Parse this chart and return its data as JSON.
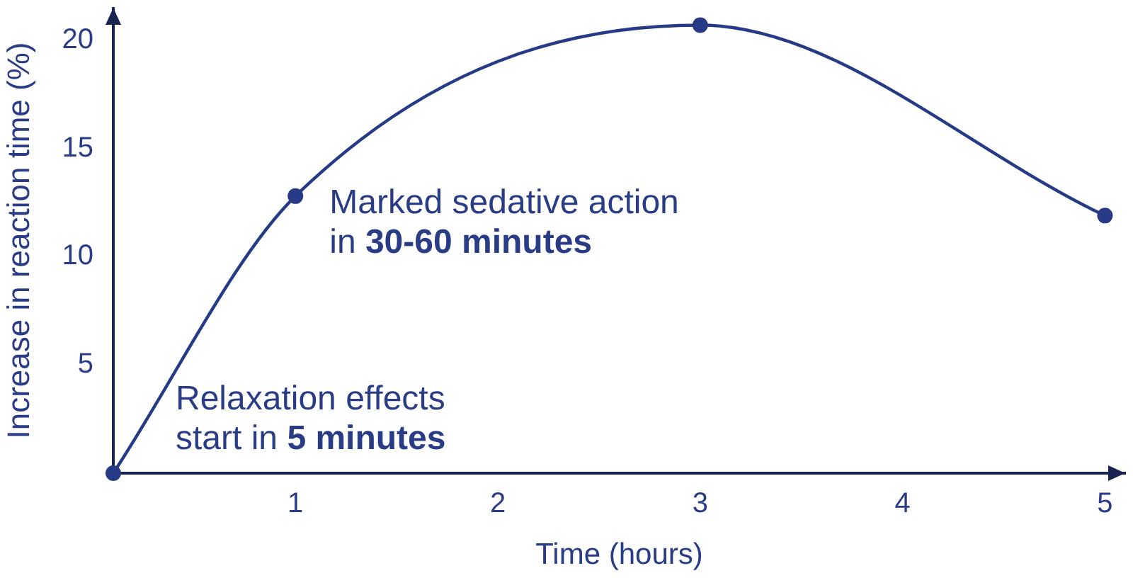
{
  "chart_data": {
    "type": "line",
    "xlabel": "Time (hours)",
    "ylabel": "Increase in reaction time (%)",
    "x": [
      0.1,
      1,
      3,
      5
    ],
    "series": [
      {
        "color": "#263a86",
        "values": [
          0,
          12.8,
          20.7,
          11.9
        ]
      }
    ],
    "xlim": [
      0.1,
      5.1
    ],
    "xticks": [
      1,
      2,
      3,
      4,
      5
    ],
    "ylim": [
      0,
      21.5
    ],
    "yticks": [
      5,
      10,
      15,
      20
    ],
    "grid": false,
    "legend": false,
    "marker": "circle",
    "line_style": "solid",
    "annotations": [
      {
        "text": "Marked sedative action\nin 30-60 minutes",
        "x": 1,
        "y": 12.8
      },
      {
        "text": "Relaxation effects\nstart in 5 minutes",
        "x": 0.1,
        "y": 0
      }
    ]
  }
}
